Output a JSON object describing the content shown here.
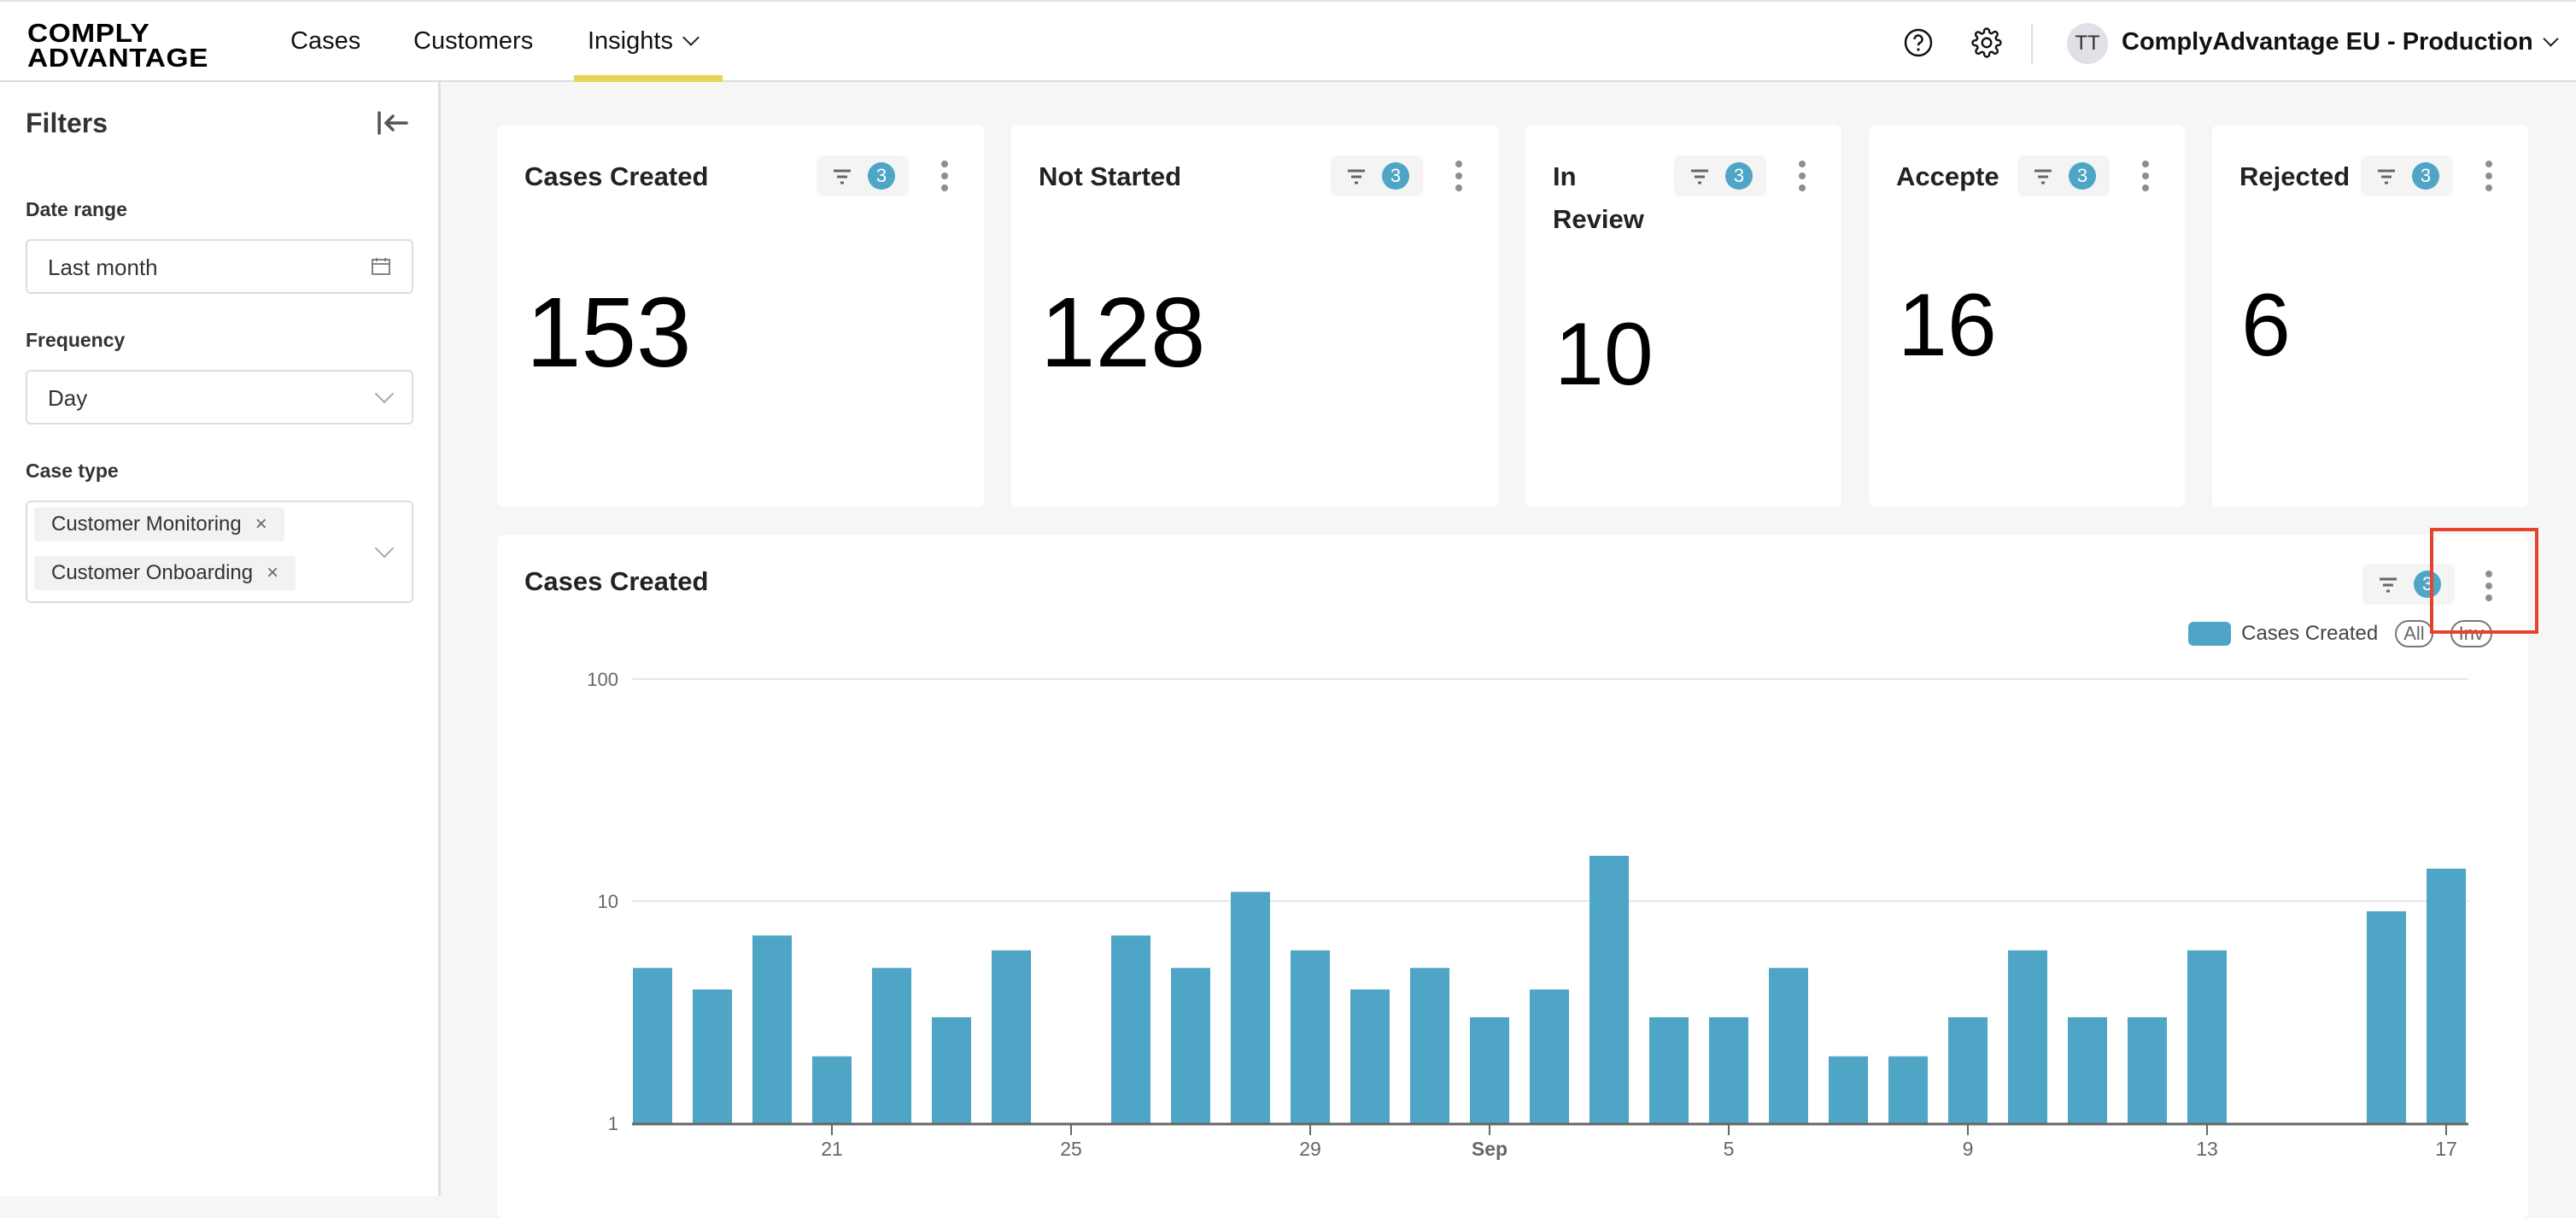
{
  "topbar": {
    "logo_line1": "COMPLY",
    "logo_line2": "ADVANTAGE",
    "nav": [
      {
        "label": "Cases"
      },
      {
        "label": "Customers"
      },
      {
        "label": "Insights",
        "active": true,
        "has_dropdown": true
      }
    ],
    "help_icon": "help-circle-icon",
    "settings_icon": "gear-icon",
    "avatar_initials": "TT",
    "org_name": "ComplyAdvantage EU - Production"
  },
  "sidebar": {
    "title": "Filters",
    "collapse_icon": "collapse-left-icon",
    "date_range": {
      "label": "Date range",
      "value": "Last month"
    },
    "frequency": {
      "label": "Frequency",
      "value": "Day"
    },
    "case_type": {
      "label": "Case type",
      "selected": [
        "Customer Monitoring",
        "Customer Onboarding"
      ]
    }
  },
  "cards": [
    {
      "title": "Cases Created",
      "value": "153",
      "filter_count": "3"
    },
    {
      "title": "Not Started",
      "value": "128",
      "filter_count": "3"
    },
    {
      "title": "In Review",
      "value": "10",
      "filter_count": "3"
    },
    {
      "title": "Accepte",
      "value": "16",
      "filter_count": "3"
    },
    {
      "title": "Rejected",
      "value": "6",
      "filter_count": "3"
    }
  ],
  "chart_card": {
    "title": "Cases Created",
    "filter_count": "3",
    "legend_label": "Cases Created",
    "legend_buttons": [
      "All",
      "Inv"
    ]
  },
  "colors": {
    "accent_bar": "#4fa5c6",
    "nav_active_underline": "#e8d35a",
    "highlight_box": "#e5432d"
  },
  "chart_data": {
    "type": "bar",
    "title": "Cases Created",
    "xlabel": "",
    "ylabel": "",
    "yscale": "log",
    "ylim": [
      1,
      100
    ],
    "yticks": [
      "1",
      "10",
      "100"
    ],
    "xticks": [
      "21",
      "25",
      "29",
      "Sep",
      "5",
      "9",
      "13",
      "17"
    ],
    "grid": true,
    "legend_position": "top-right",
    "categories": [
      "Aug 18",
      "Aug 19",
      "Aug 20",
      "Aug 21",
      "Aug 22",
      "Aug 23",
      "Aug 24",
      "Aug 25",
      "Aug 26",
      "Aug 27",
      "Aug 28",
      "Aug 29",
      "Aug 30",
      "Aug 31",
      "Sep 1",
      "Sep 2",
      "Sep 3",
      "Sep 4",
      "Sep 5",
      "Sep 6",
      "Sep 7",
      "Sep 8",
      "Sep 9",
      "Sep 10",
      "Sep 11",
      "Sep 12",
      "Sep 13",
      "Sep 14",
      "Sep 15",
      "Sep 16",
      "Sep 17"
    ],
    "series": [
      {
        "name": "Cases Created",
        "color": "#4fa5c6",
        "values": [
          5,
          4,
          7,
          2,
          5,
          3,
          6,
          0,
          7,
          5,
          11,
          6,
          4,
          5,
          3,
          4,
          16,
          3,
          3,
          5,
          2,
          2,
          3,
          6,
          3,
          3,
          6,
          0,
          0,
          9,
          14
        ]
      }
    ]
  }
}
